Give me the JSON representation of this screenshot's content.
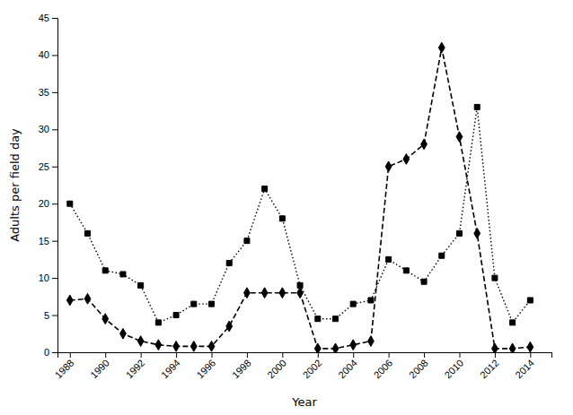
{
  "chart_data": {
    "type": "line",
    "xlabel": "Year",
    "ylabel": "Adults per field day",
    "x": [
      1988,
      1989,
      1990,
      1991,
      1992,
      1993,
      1994,
      1995,
      1996,
      1997,
      1998,
      1999,
      2000,
      2001,
      2002,
      2003,
      2004,
      2005,
      2006,
      2007,
      2008,
      2009,
      2010,
      2011,
      2012,
      2013,
      2014
    ],
    "series": [
      {
        "color": "#000000",
        "marker": "square",
        "line_style": "dotted",
        "values": [
          20,
          16,
          11,
          10.5,
          9,
          4,
          5,
          6.5,
          6.5,
          12,
          15,
          22,
          18,
          9,
          4.5,
          4.5,
          6.5,
          7,
          12.5,
          11,
          9.5,
          13,
          16,
          33,
          10,
          4,
          7
        ]
      },
      {
        "color": "#000000",
        "marker": "diamond",
        "line_style": "dashed",
        "values": [
          7,
          7.2,
          4.5,
          2.5,
          1.5,
          1,
          0.8,
          0.8,
          0.8,
          3.5,
          8,
          8,
          8,
          8,
          0.5,
          0.5,
          1,
          1.5,
          25,
          26,
          28,
          41,
          29,
          16,
          0.5,
          0.5,
          0.7
        ]
      }
    ],
    "xlim": [
      1987.3,
      2015.2
    ],
    "xticks": [
      1988,
      1990,
      1992,
      1994,
      1996,
      1998,
      2000,
      2002,
      2004,
      2006,
      2008,
      2010,
      2012,
      2014
    ],
    "ylim": [
      0,
      45
    ],
    "yticks": [
      0,
      5,
      10,
      15,
      20,
      25,
      30,
      35,
      40,
      45
    ],
    "grid": false,
    "background": "#ffffff"
  }
}
